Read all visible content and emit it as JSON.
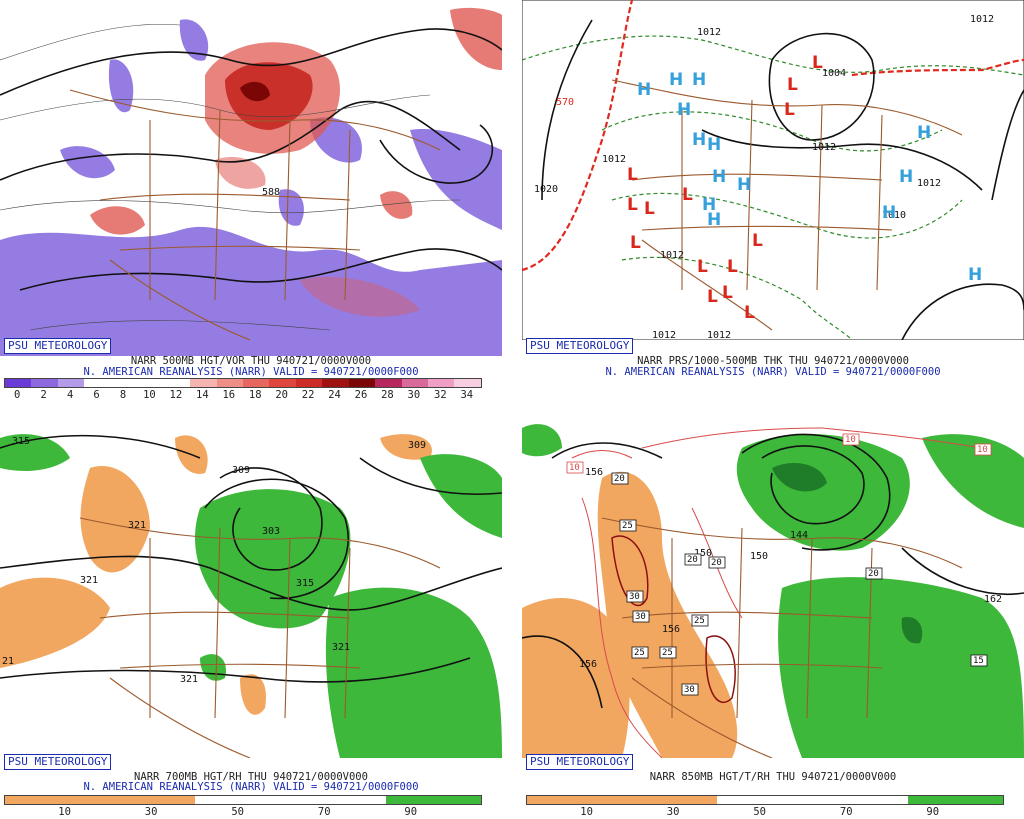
{
  "brand": "PSU METEOROLOGY",
  "panels": [
    {
      "caption1": "NARR 500MB HGT/VOR THU 940721/0000V000",
      "caption2": "N. AMERICAN REANALYSIS (NARR) VALID = 940721/0000F000",
      "colorbar_labels": [
        "0",
        "2",
        "4",
        "6",
        "8",
        "10",
        "12",
        "14",
        "16",
        "18",
        "20",
        "22",
        "24",
        "26",
        "28",
        "30",
        "32",
        "34"
      ],
      "colorbar_colors": [
        "#6a3bd6",
        "#8d68df",
        "#b39be9",
        "#ffffff",
        "#ffffff",
        "#ffffff",
        "#ffffff",
        "#f6b4b0",
        "#ef8d87",
        "#e7665f",
        "#de453d",
        "#cc2b27",
        "#9f1212",
        "#7a0606",
        "#b7265f",
        "#d76a98",
        "#ee9fc3",
        "#f8cfe0"
      ],
      "contour_labels": [
        "588"
      ]
    },
    {
      "caption1": "NARR PRS/1000-500MB THK THU 940721/0000V000",
      "caption2": "N. AMERICAN REANALYSIS (NARR) VALID = 940721/0000F000",
      "contour_labels": [
        "1012",
        "1012",
        "1004",
        "1012",
        "1012",
        "1020",
        "1012",
        "1012",
        "1012",
        "570",
        "1010",
        "1012"
      ],
      "highs": [
        "H",
        "H",
        "H",
        "H",
        "H",
        "H",
        "H",
        "H",
        "H",
        "H",
        "H",
        "H",
        "H",
        "H"
      ],
      "lows": [
        "L",
        "L",
        "L",
        "L",
        "L",
        "L",
        "L",
        "L",
        "L",
        "L",
        "L",
        "L",
        "L",
        "L"
      ]
    },
    {
      "caption1": "NARR 700MB HGT/RH THU 940721/0000V000",
      "caption2": "N. AMERICAN REANALYSIS (NARR) VALID = 940721/0000F000",
      "colorbar_labels": [
        "10",
        "30",
        "50",
        "70",
        "90"
      ],
      "contour_labels": [
        "315",
        "309",
        "309",
        "303",
        "315",
        "321",
        "321",
        "321",
        "321",
        "321",
        "21"
      ]
    },
    {
      "caption1": "NARR 850MB HGT/T/RH THU 940721/0000V000",
      "colorbar_labels": [
        "10",
        "30",
        "50",
        "70",
        "90"
      ],
      "contour_labels": [
        "156",
        "150",
        "144",
        "156",
        "162",
        "156",
        "150"
      ],
      "temp_boxes": [
        "10",
        "10",
        "10",
        "20",
        "25",
        "20",
        "20",
        "30",
        "30",
        "25",
        "25",
        "30",
        "20",
        "15",
        "25"
      ]
    }
  ],
  "colors": {
    "pos_vort": "#e05a52",
    "neg_vort": "#8a6ee0",
    "dry": "#f2a761",
    "moist": "#3db83a",
    "border": "#9b5a2e",
    "high": "#35a0dc",
    "low": "#d9271d"
  }
}
